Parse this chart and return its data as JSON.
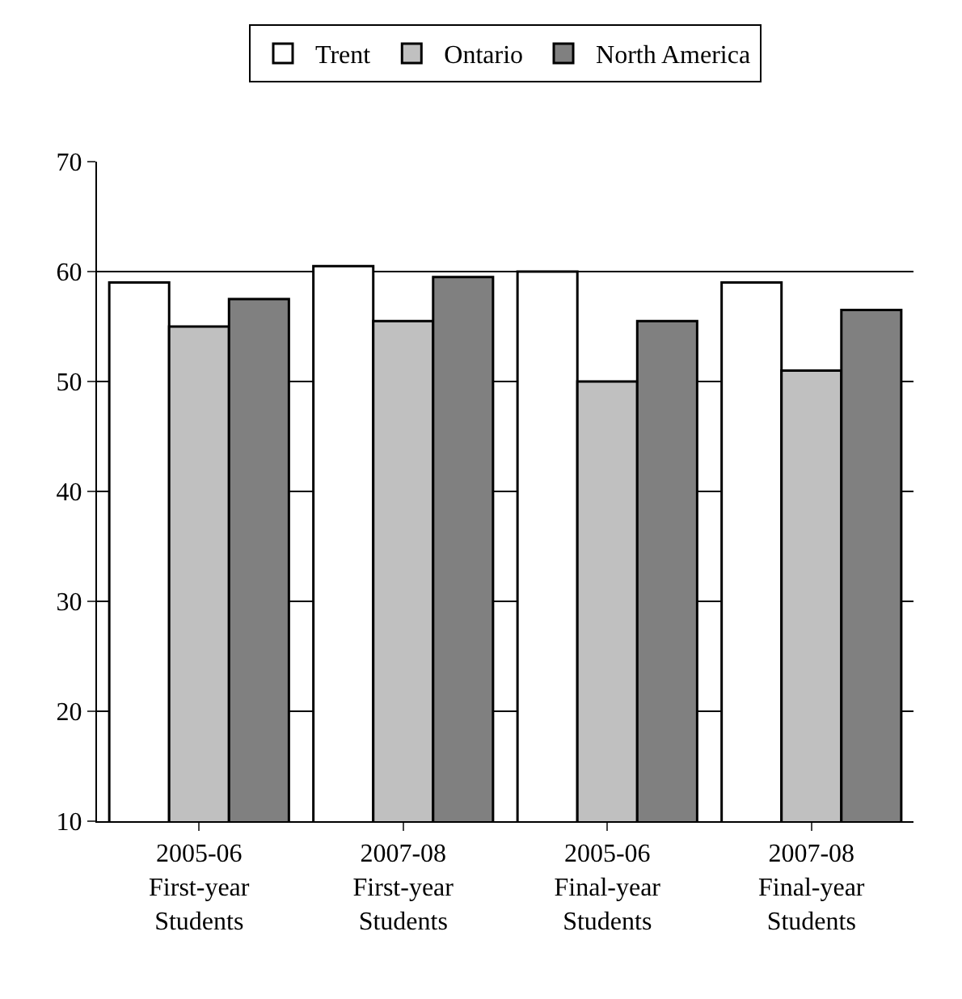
{
  "chart_data": {
    "type": "bar",
    "categories": [
      "2005-06\nFirst-year\nStudents",
      "2007-08\nFirst-year\nStudents",
      "2005-06\nFinal-year\nStudents",
      "2007-08\nFinal-year\nStudents"
    ],
    "series": [
      {
        "name": "Trent",
        "color": "#ffffff",
        "values": [
          59,
          60.5,
          60,
          59
        ]
      },
      {
        "name": "Ontario",
        "color": "#c0c0c0",
        "values": [
          55,
          55.5,
          50,
          51
        ]
      },
      {
        "name": "North America",
        "color": "#808080",
        "values": [
          57.5,
          59.5,
          55.5,
          56.5
        ]
      }
    ],
    "ylim": [
      10,
      70
    ],
    "yticks": [
      10,
      20,
      30,
      40,
      50,
      60,
      70
    ],
    "grid": "y",
    "legend": "top"
  }
}
